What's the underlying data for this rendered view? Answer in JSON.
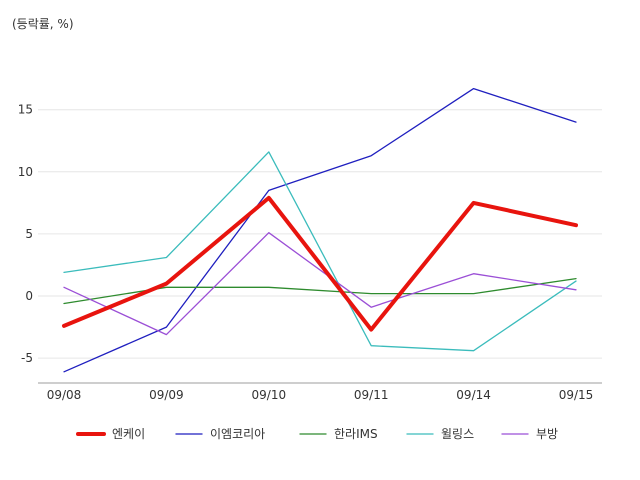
{
  "chart_data": {
    "type": "line",
    "unit_label": "(등락률, %)",
    "categories": [
      "09/08",
      "09/09",
      "09/10",
      "09/11",
      "09/14",
      "09/15"
    ],
    "ylim": [
      -7,
      19
    ],
    "yticks": [
      -5,
      0,
      5,
      10,
      15
    ],
    "grid": true,
    "legend_position": "bottom",
    "series": [
      {
        "name": "엔케이",
        "color": "#e8140e",
        "emphasis": true,
        "values": [
          -2.4,
          1.0,
          7.9,
          -2.7,
          7.5,
          5.7
        ]
      },
      {
        "name": "이엠코리아",
        "color": "#1f1fbf",
        "emphasis": false,
        "values": [
          -6.1,
          -2.5,
          8.5,
          11.3,
          16.7,
          14.0
        ]
      },
      {
        "name": "한라IMS",
        "color": "#2e8b2e",
        "emphasis": false,
        "values": [
          -0.6,
          0.7,
          0.7,
          0.2,
          0.2,
          1.4
        ]
      },
      {
        "name": "윌링스",
        "color": "#3bbcbc",
        "emphasis": false,
        "values": [
          1.9,
          3.1,
          11.6,
          -4.0,
          -4.4,
          1.2
        ]
      },
      {
        "name": "부방",
        "color": "#9b4fd6",
        "emphasis": false,
        "values": [
          0.7,
          -3.1,
          5.1,
          -0.9,
          1.8,
          0.5
        ]
      }
    ]
  }
}
